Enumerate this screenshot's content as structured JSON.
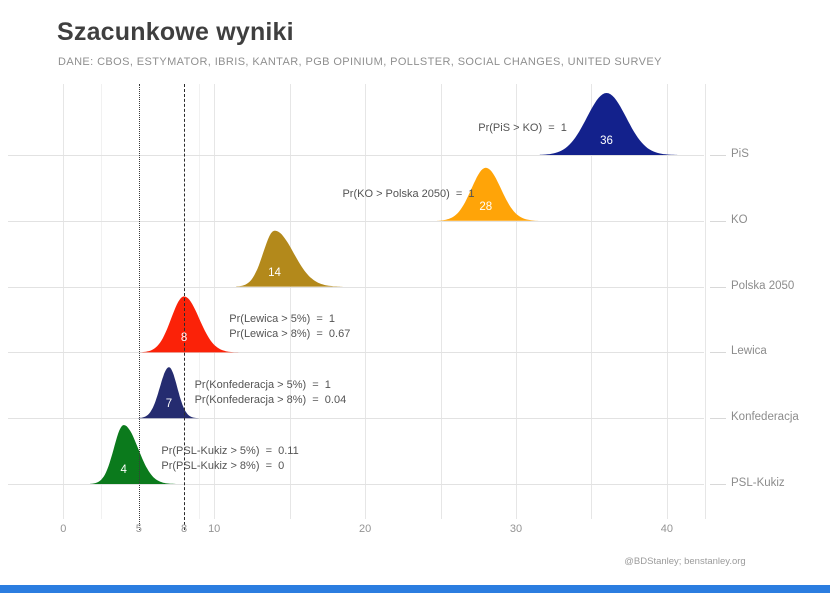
{
  "header": {
    "title": "Szacunkowe wyniki",
    "subtitle": "DANE: CBOS, ESTYMATOR, IBRIS, KANTAR, PGB OPINIUM, POLLSTER, SOCIAL CHANGES, UNITED SURVEY"
  },
  "footer": {
    "credit": "@BDStanley; benstanley.org",
    "bar_color": "#2b7de0"
  },
  "chart_data": {
    "type": "area",
    "subtype": "ridgeline-density",
    "title": "Szacunkowe wyniki",
    "xlabel": "",
    "ylabel": "",
    "xlim": [
      0,
      45
    ],
    "x_ticks": [
      0,
      5,
      8,
      10,
      20,
      30,
      40
    ],
    "grid": "on",
    "reference_lines": [
      {
        "x": 5,
        "style": "dotted"
      },
      {
        "x": 8,
        "style": "dashed"
      }
    ],
    "series": [
      {
        "party": "PiS",
        "mean": 36,
        "sd_left": 1.3,
        "sd_right": 1.3,
        "label": "36",
        "color": "#13218c",
        "annotations": [
          "Pr(PiS > KO)  =  1"
        ]
      },
      {
        "party": "KO",
        "mean": 28,
        "sd_left": 0.95,
        "sd_right": 1.0,
        "label": "28",
        "color": "#ffa408",
        "annotations": [
          "Pr(KO > Polska 2050)  =  1"
        ]
      },
      {
        "party": "Polska 2050",
        "mean": 14,
        "sd_left": 0.75,
        "sd_right": 1.25,
        "label": "14",
        "color": "#b3891b",
        "annotations": []
      },
      {
        "party": "Lewica",
        "mean": 8,
        "sd_left": 0.85,
        "sd_right": 1.0,
        "label": "8",
        "color": "#fb2208",
        "annotations": [
          "Pr(Lewica > 5%)  =  1",
          "Pr(Lewica > 8%)  =  0.67"
        ]
      },
      {
        "party": "Konfederacja",
        "mean": 7,
        "sd_left": 0.6,
        "sd_right": 0.55,
        "label": "7",
        "color": "#252c70",
        "annotations": [
          "Pr(Konfederacja > 5%)  =  1",
          "Pr(Konfederacja > 8%)  =  0.04"
        ]
      },
      {
        "party": "PSL-Kukiz",
        "mean": 4,
        "sd_left": 0.65,
        "sd_right": 0.95,
        "label": "4",
        "color": "#0b7a1c",
        "annotations": [
          "Pr(PSL-Kukiz > 5%)  =  0.11",
          "Pr(PSL-Kukiz > 8%)  =  0"
        ]
      }
    ]
  }
}
